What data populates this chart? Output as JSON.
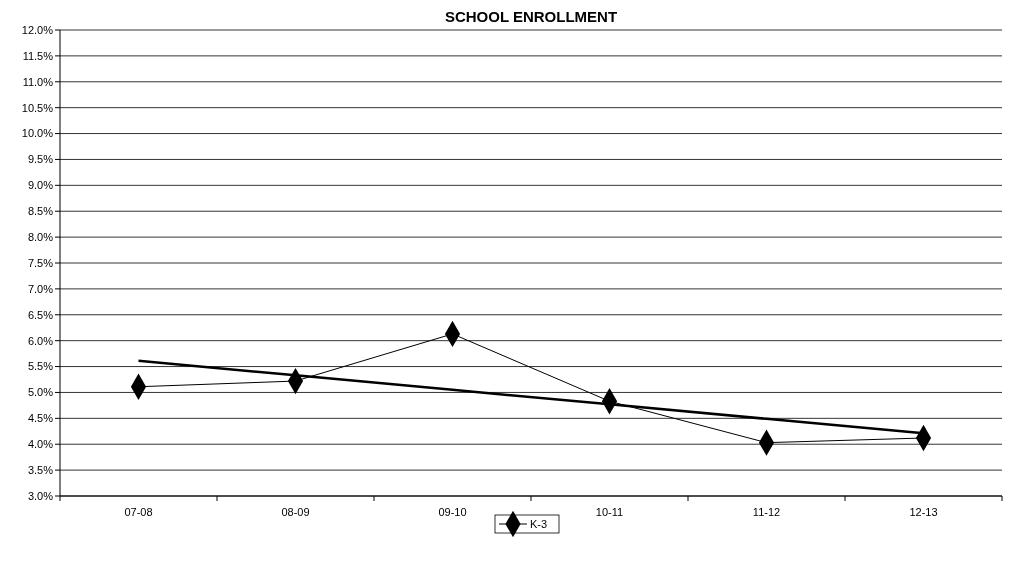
{
  "chart_data": {
    "type": "line",
    "title": "SCHOOL ENROLLMENT",
    "categories": [
      "07-08",
      "08-09",
      "09-10",
      "10-11",
      "11-12",
      "12-13"
    ],
    "series": [
      {
        "name": "K-3",
        "color": "#000000",
        "marker": "diamond",
        "values": [
          5.11,
          5.22,
          6.13,
          4.83,
          4.03,
          4.12
        ]
      },
      {
        "type": "line",
        "color": "#000000",
        "marker": "none",
        "values": [
          5.61,
          5.33,
          5.05,
          4.77,
          4.49,
          4.21
        ]
      }
    ],
    "ylim": [
      3,
      12
    ],
    "yticks": [
      {
        "value": 3,
        "label": "3.0%"
      },
      {
        "value": 3.5,
        "label": "3.5%"
      },
      {
        "value": 4,
        "label": "4.0%"
      },
      {
        "value": 4.5,
        "label": "4.5%"
      },
      {
        "value": 5,
        "label": "5.0%"
      },
      {
        "value": 5.5,
        "label": "5.5%"
      },
      {
        "value": 6,
        "label": "6.0%"
      },
      {
        "value": 6.5,
        "label": "6.5%"
      },
      {
        "value": 7,
        "label": "7.0%"
      },
      {
        "value": 7.5,
        "label": "7.5%"
      },
      {
        "value": 8,
        "label": "8.0%"
      },
      {
        "value": 8.5,
        "label": "8.5%"
      },
      {
        "value": 9,
        "label": "9.0%"
      },
      {
        "value": 9.5,
        "label": "9.5%"
      },
      {
        "value": 10,
        "label": "10.0%"
      },
      {
        "value": 10.5,
        "label": "10.5%"
      },
      {
        "value": 11,
        "label": "11.0%"
      },
      {
        "value": 11.5,
        "label": "11.5%"
      },
      {
        "value": 12,
        "label": "12.0%"
      }
    ],
    "grid": "y",
    "legend": "bottom"
  }
}
